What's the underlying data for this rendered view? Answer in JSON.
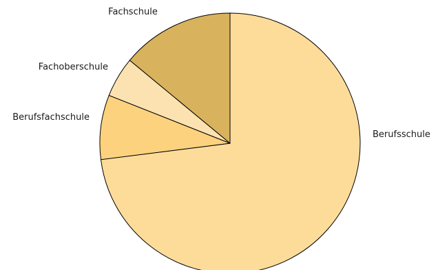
{
  "chart_data": {
    "type": "pie",
    "title": "",
    "labels": [
      "Berufsschule",
      "Berufsfachschule",
      "Fachoberschule",
      "Fachschule"
    ],
    "values": [
      73.0,
      8.0,
      5.0,
      14.0
    ],
    "colors": [
      "#FDDC9A",
      "#FCD27F",
      "#FDE2B1",
      "#D9B25D"
    ],
    "start_angle_deg": 0,
    "direction": "clockwise",
    "legend": "none"
  }
}
